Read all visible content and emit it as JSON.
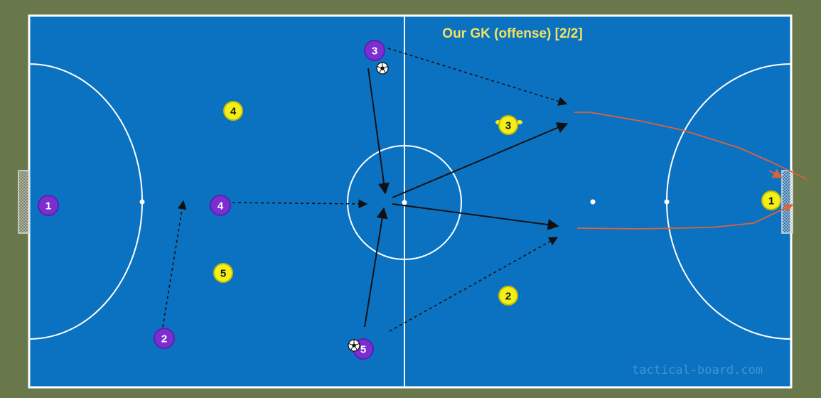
{
  "title": "Our GK (offense) [2/2]",
  "watermark": "tactical-board.com",
  "colors": {
    "background": "#69784a",
    "field": "#0b72c2",
    "lines": "#ffffff",
    "team_home": "#7b2fd0",
    "team_home_border": "#5a20b0",
    "team_away": "#f2ef19",
    "team_away_border": "#c9b900",
    "title": "#f5e25a",
    "pass_arrow": "#111111",
    "run_line": "#d9633a"
  },
  "icons": {
    "ball": "soccer-ball-icon",
    "goal": "goal-net-icon"
  },
  "players_purple": [
    {
      "id": "purple-1",
      "label": "1"
    },
    {
      "id": "purple-2",
      "label": "2"
    },
    {
      "id": "purple-3",
      "label": "3"
    },
    {
      "id": "purple-4",
      "label": "4"
    },
    {
      "id": "purple-5",
      "label": "5"
    }
  ],
  "players_yellow": [
    {
      "id": "yellow-1",
      "label": "1"
    },
    {
      "id": "yellow-2",
      "label": "2"
    },
    {
      "id": "yellow-3",
      "label": "3"
    },
    {
      "id": "yellow-4",
      "label": "4"
    },
    {
      "id": "yellow-5",
      "label": "5"
    }
  ]
}
